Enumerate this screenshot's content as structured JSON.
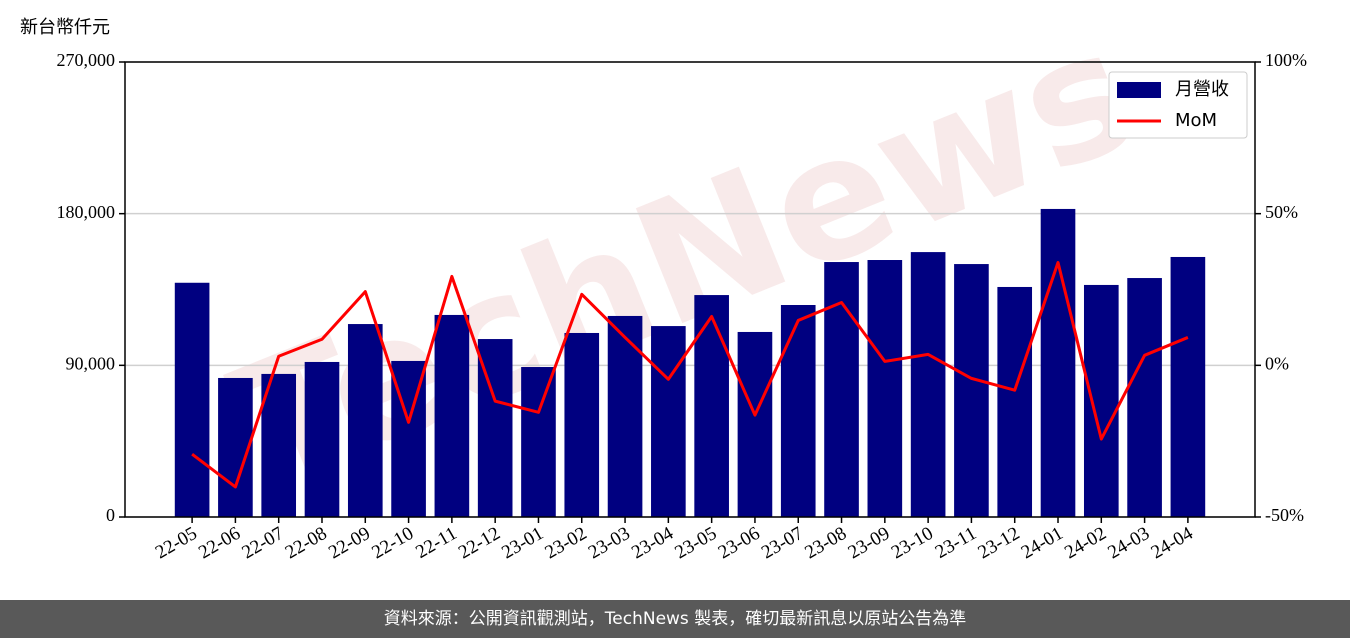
{
  "chart_data": {
    "type": "bar_line",
    "y_label": "新台幣仟元",
    "footer": "資料來源：公開資訊觀測站，TechNews 製表，確切最新訊息以原站公告為準",
    "watermark": "TechNews",
    "categories": [
      "22-05",
      "22-06",
      "22-07",
      "22-08",
      "22-09",
      "22-10",
      "22-11",
      "22-12",
      "23-01",
      "23-02",
      "23-03",
      "23-04",
      "23-05",
      "23-06",
      "23-07",
      "23-08",
      "23-09",
      "23-10",
      "23-11",
      "23-12",
      "24-01",
      "24-02",
      "24-03",
      "24-04"
    ],
    "series": [
      {
        "name": "月營收",
        "color": "#000080",
        "type": "bar",
        "values": [
          139000,
          82500,
          84900,
          92000,
          114500,
          92600,
          119900,
          105600,
          89000,
          109200,
          119300,
          113300,
          131700,
          109800,
          125800,
          151300,
          152500,
          157200,
          150100,
          136500,
          182800,
          137700,
          141800,
          154300
        ]
      },
      {
        "name": "MoM",
        "color": "#ff0000",
        "type": "line",
        "axis": "y2",
        "values": [
          -29.3,
          -40.1,
          3,
          8.6,
          24.3,
          -18.8,
          29.3,
          -11.8,
          -15.5,
          23.4,
          9.2,
          -4.6,
          16.1,
          -16.4,
          14.8,
          20.7,
          1.3,
          3.6,
          -4.3,
          -8.2,
          33.9,
          -24.3,
          3.3,
          9.2
        ]
      }
    ],
    "ylim": [
      0,
      270000
    ],
    "yticks": [
      0,
      {
        "value": 90000,
        "label": "90,000"
      },
      {
        "value": 180000,
        "label": "180,000"
      },
      {
        "value": 270000,
        "label": "270,000"
      }
    ],
    "y2lim": [
      -50,
      100
    ],
    "y2ticks": [
      {
        "value": -50,
        "label": "-50%"
      },
      {
        "value": 0,
        "label": "0%"
      },
      {
        "value": 50,
        "label": "50%"
      },
      {
        "value": 100,
        "label": "100%"
      }
    ],
    "grid": true,
    "legend": "upper right"
  }
}
